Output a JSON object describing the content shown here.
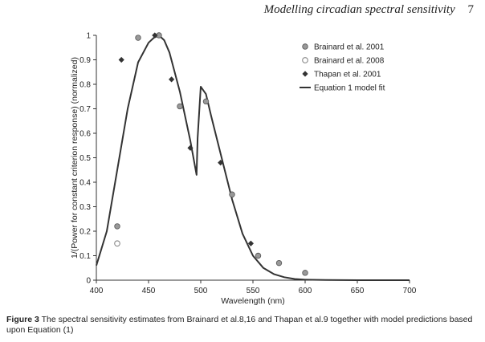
{
  "running_head": {
    "title": "Modelling circadian spectral sensitivity",
    "page_number": "7"
  },
  "caption": {
    "label": "Figure 3",
    "text": "The spectral sensitivity estimates from Brainard et al.8,16 and Thapan et al.9 together with model predictions based upon Equation (1)"
  },
  "chart_data": {
    "type": "scatter",
    "xlabel": "Wavelength (nm)",
    "ylabel": "1/(Power for constant criterion response) (normalized)",
    "xlim": [
      400,
      700
    ],
    "ylim": [
      0,
      1
    ],
    "xticks": [
      "400",
      "450",
      "500",
      "550",
      "600",
      "650",
      "700"
    ],
    "yticks": [
      "0",
      "0.1",
      "0.2",
      "0.3",
      "0.4",
      "0.5",
      "0.6",
      "0.7",
      "0.8",
      "0.9",
      "1"
    ],
    "grid": false,
    "legend_position": "top-right",
    "series": [
      {
        "name": "Brainard et al. 2001",
        "marker": "filled-circle",
        "color": "#999999",
        "x": [
          420,
          440,
          460,
          480,
          505,
          530,
          555,
          575,
          600
        ],
        "y": [
          0.22,
          0.99,
          1.0,
          0.71,
          0.73,
          0.35,
          0.1,
          0.07,
          0.03
        ]
      },
      {
        "name": "Brainard et al. 2008",
        "marker": "open-circle",
        "color": "#888888",
        "x": [
          420
        ],
        "y": [
          0.15
        ]
      },
      {
        "name": "Thapan et al. 2001",
        "marker": "diamond",
        "color": "#333333",
        "x": [
          424,
          456,
          472,
          490,
          519,
          548
        ],
        "y": [
          0.9,
          1.0,
          0.82,
          0.54,
          0.48,
          0.15
        ]
      },
      {
        "name": "Equation 1 model fit",
        "marker": "line",
        "color": "#333333",
        "x": [
          400,
          410,
          420,
          430,
          440,
          450,
          455,
          460,
          465,
          470,
          480,
          490,
          496,
          497,
          500,
          505,
          510,
          520,
          530,
          540,
          550,
          560,
          570,
          580,
          590,
          600,
          620,
          650,
          700
        ],
        "y": [
          0.06,
          0.2,
          0.45,
          0.7,
          0.89,
          0.97,
          0.99,
          1.0,
          0.98,
          0.93,
          0.77,
          0.57,
          0.43,
          0.58,
          0.79,
          0.76,
          0.67,
          0.5,
          0.33,
          0.19,
          0.1,
          0.05,
          0.025,
          0.012,
          0.005,
          0.002,
          0.0005,
          0.0,
          0.0
        ]
      }
    ]
  }
}
